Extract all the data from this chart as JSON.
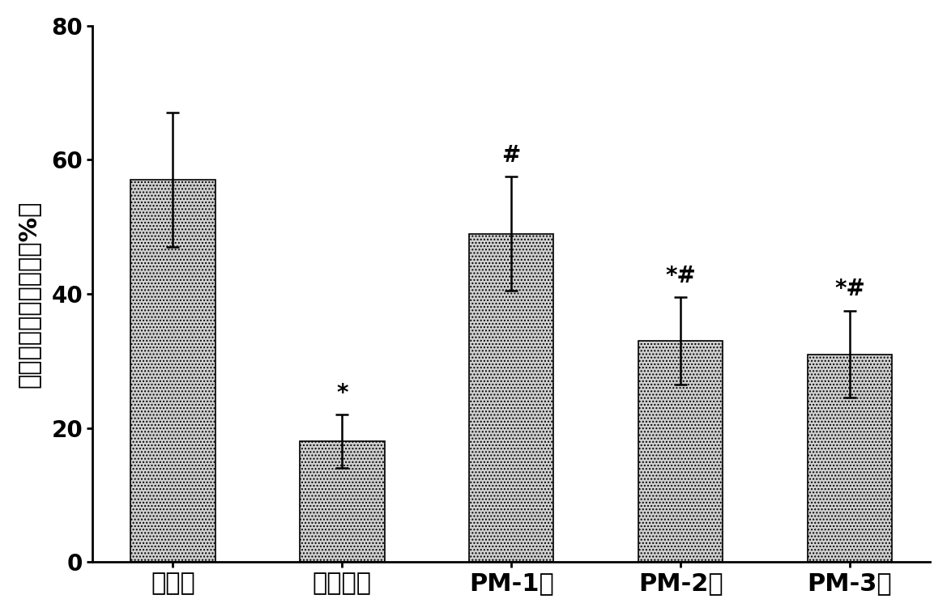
{
  "categories": [
    "正常组",
    "活性氧组",
    "PM-1组",
    "PM-2组",
    "PM-3组"
  ],
  "values": [
    57.0,
    18.0,
    49.0,
    33.0,
    31.0
  ],
  "errors": [
    10.0,
    4.0,
    8.5,
    6.5,
    6.5
  ],
  "annotations": [
    "",
    "*",
    "#",
    "*#",
    "*#"
  ],
  "bar_color": "#d0d0d0",
  "bar_hatch": "....",
  "ylabel": "小鼠精子活率百分比（%）",
  "ylim": [
    0,
    80
  ],
  "yticks": [
    0,
    20,
    40,
    60,
    80
  ],
  "background_color": "#ffffff",
  "bar_width": 0.5,
  "annotation_fontsize": 20,
  "ylabel_fontsize": 22,
  "xlabel_fontsize": 22,
  "tick_fontsize": 20
}
